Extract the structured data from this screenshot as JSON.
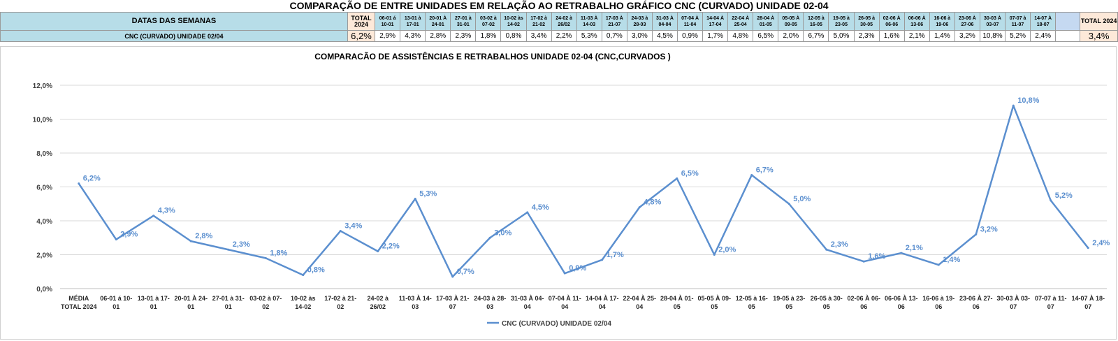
{
  "sheet_title": "COMPARAÇÃO DE ENTRE UNIDADES EM RELAÇÃO AO RETRABALHO GRÁFICO CNC (CURVADO) UNIDADE 02-04",
  "table": {
    "header_label": "DATAS DAS SEMANAS",
    "row_label": "CNC (CURVADO) UNIDADE 02/04",
    "total_label_left": "TOTAL 2024",
    "total_value_left": "6,2%",
    "week_headers": [
      "06-01 á 10-01",
      "13-01 à 17-01",
      "20-01 À 24-01",
      "27-01 à 31-01",
      "03-02 à 07-02",
      "10-02 às 14-02",
      "17-02 à 21-02",
      "24-02 à 26/02",
      "11-03 À 14-03",
      "17-03 À 21-07",
      "24-03 à 28-03",
      "31-03 À 04-04",
      "07-04 À 11-04",
      "14-04 À 17-04",
      "22-04 À 25-04",
      "28-04 À 01-05",
      "05-05 À 09-05",
      "12-05 à 16-05",
      "19-05 à 23-05",
      "26-05 à 30-05",
      "02-06 À 06-06",
      "06-06 À 13-06",
      "16-06 à 19-06",
      "23-06 À 27-06",
      "30-03 À 03-07",
      "07-07 à 11-07",
      "14-07 À 18-07"
    ],
    "week_values": [
      "2,9%",
      "4,3%",
      "2,8%",
      "2,3%",
      "1,8%",
      "0,8%",
      "3,4%",
      "2,2%",
      "5,3%",
      "0,7%",
      "3,0%",
      "4,5%",
      "0,9%",
      "1,7%",
      "4,8%",
      "6,5%",
      "2,0%",
      "6,7%",
      "5,0%",
      "2,3%",
      "1,6%",
      "2,1%",
      "1,4%",
      "3,2%",
      "10,8%",
      "5,2%",
      "2,4%"
    ],
    "total_label_right": "TOTAL 2024",
    "total_value_right": "3,4%"
  },
  "chart_data": {
    "type": "line",
    "title": "COMPARACÃO DE ASSISTÊNCIAS E RETRABALHOS UNIDADE 02-04  (CNC,CURVADOS )",
    "categories": [
      [
        "MÉDIA",
        "TOTAL 2024"
      ],
      [
        "06-01 á 10-",
        "01"
      ],
      [
        "13-01 à 17-",
        "01"
      ],
      [
        "20-01 À 24-",
        "01"
      ],
      [
        "27-01 à 31-",
        "01"
      ],
      [
        "03-02 à 07-",
        "02"
      ],
      [
        "10-02 às",
        "14-02"
      ],
      [
        "17-02 à 21-",
        "02"
      ],
      [
        "24-02 à",
        "26/02"
      ],
      [
        "11-03 À 14-",
        "03"
      ],
      [
        "17-03 À 21-",
        "07"
      ],
      [
        "24-03 à 28-",
        "03"
      ],
      [
        "31-03 À 04-",
        "04"
      ],
      [
        "07-04 À 11-",
        "04"
      ],
      [
        "14-04 À 17-",
        "04"
      ],
      [
        "22-04 À 25-",
        "04"
      ],
      [
        "28-04 À 01-",
        "05"
      ],
      [
        "05-05 À 09-",
        "05"
      ],
      [
        "12-05 à 16-",
        "05"
      ],
      [
        "19-05 à 23-",
        "05"
      ],
      [
        "26-05 à 30-",
        "05"
      ],
      [
        "02-06 À 06-",
        "06"
      ],
      [
        "06-06 À 13-",
        "06"
      ],
      [
        "16-06 à 19-",
        "06"
      ],
      [
        "23-06 À 27-",
        "06"
      ],
      [
        "30-03 À 03-",
        "07"
      ],
      [
        "07-07 à 11-",
        "07"
      ],
      [
        "14-07 À 18-",
        "07"
      ]
    ],
    "series": [
      {
        "name": "CNC (CURVADO) UNIDADE 02/04",
        "values": [
          6.2,
          2.9,
          4.3,
          2.8,
          2.3,
          1.8,
          0.8,
          3.4,
          2.2,
          5.3,
          0.7,
          3.0,
          4.5,
          0.9,
          1.7,
          4.8,
          6.5,
          2.0,
          6.7,
          5.0,
          2.3,
          1.6,
          2.1,
          1.4,
          3.2,
          10.8,
          5.2,
          2.4
        ],
        "labels": [
          "6,2%",
          "2,9%",
          "4,3%",
          "2,8%",
          "2,3%",
          "1,8%",
          "0,8%",
          "3,4%",
          "2,2%",
          "5,3%",
          "0,7%",
          "3,0%",
          "4,5%",
          "0,9%",
          "1,7%",
          "4,8%",
          "6,5%",
          "2,0%",
          "6,7%",
          "5,0%",
          "2,3%",
          "1,6%",
          "2,1%",
          "1,4%",
          "3,2%",
          "10,8%",
          "5,2%",
          "2,4%"
        ],
        "color": "#5b8fcf"
      }
    ],
    "ylim": [
      0,
      12
    ],
    "yticks": [
      "0,0%",
      "2,0%",
      "4,0%",
      "6,0%",
      "8,0%",
      "10,0%",
      "12,0%"
    ],
    "grid": true,
    "legend_placement": "bottom",
    "label_color": "#5b8fcf"
  }
}
